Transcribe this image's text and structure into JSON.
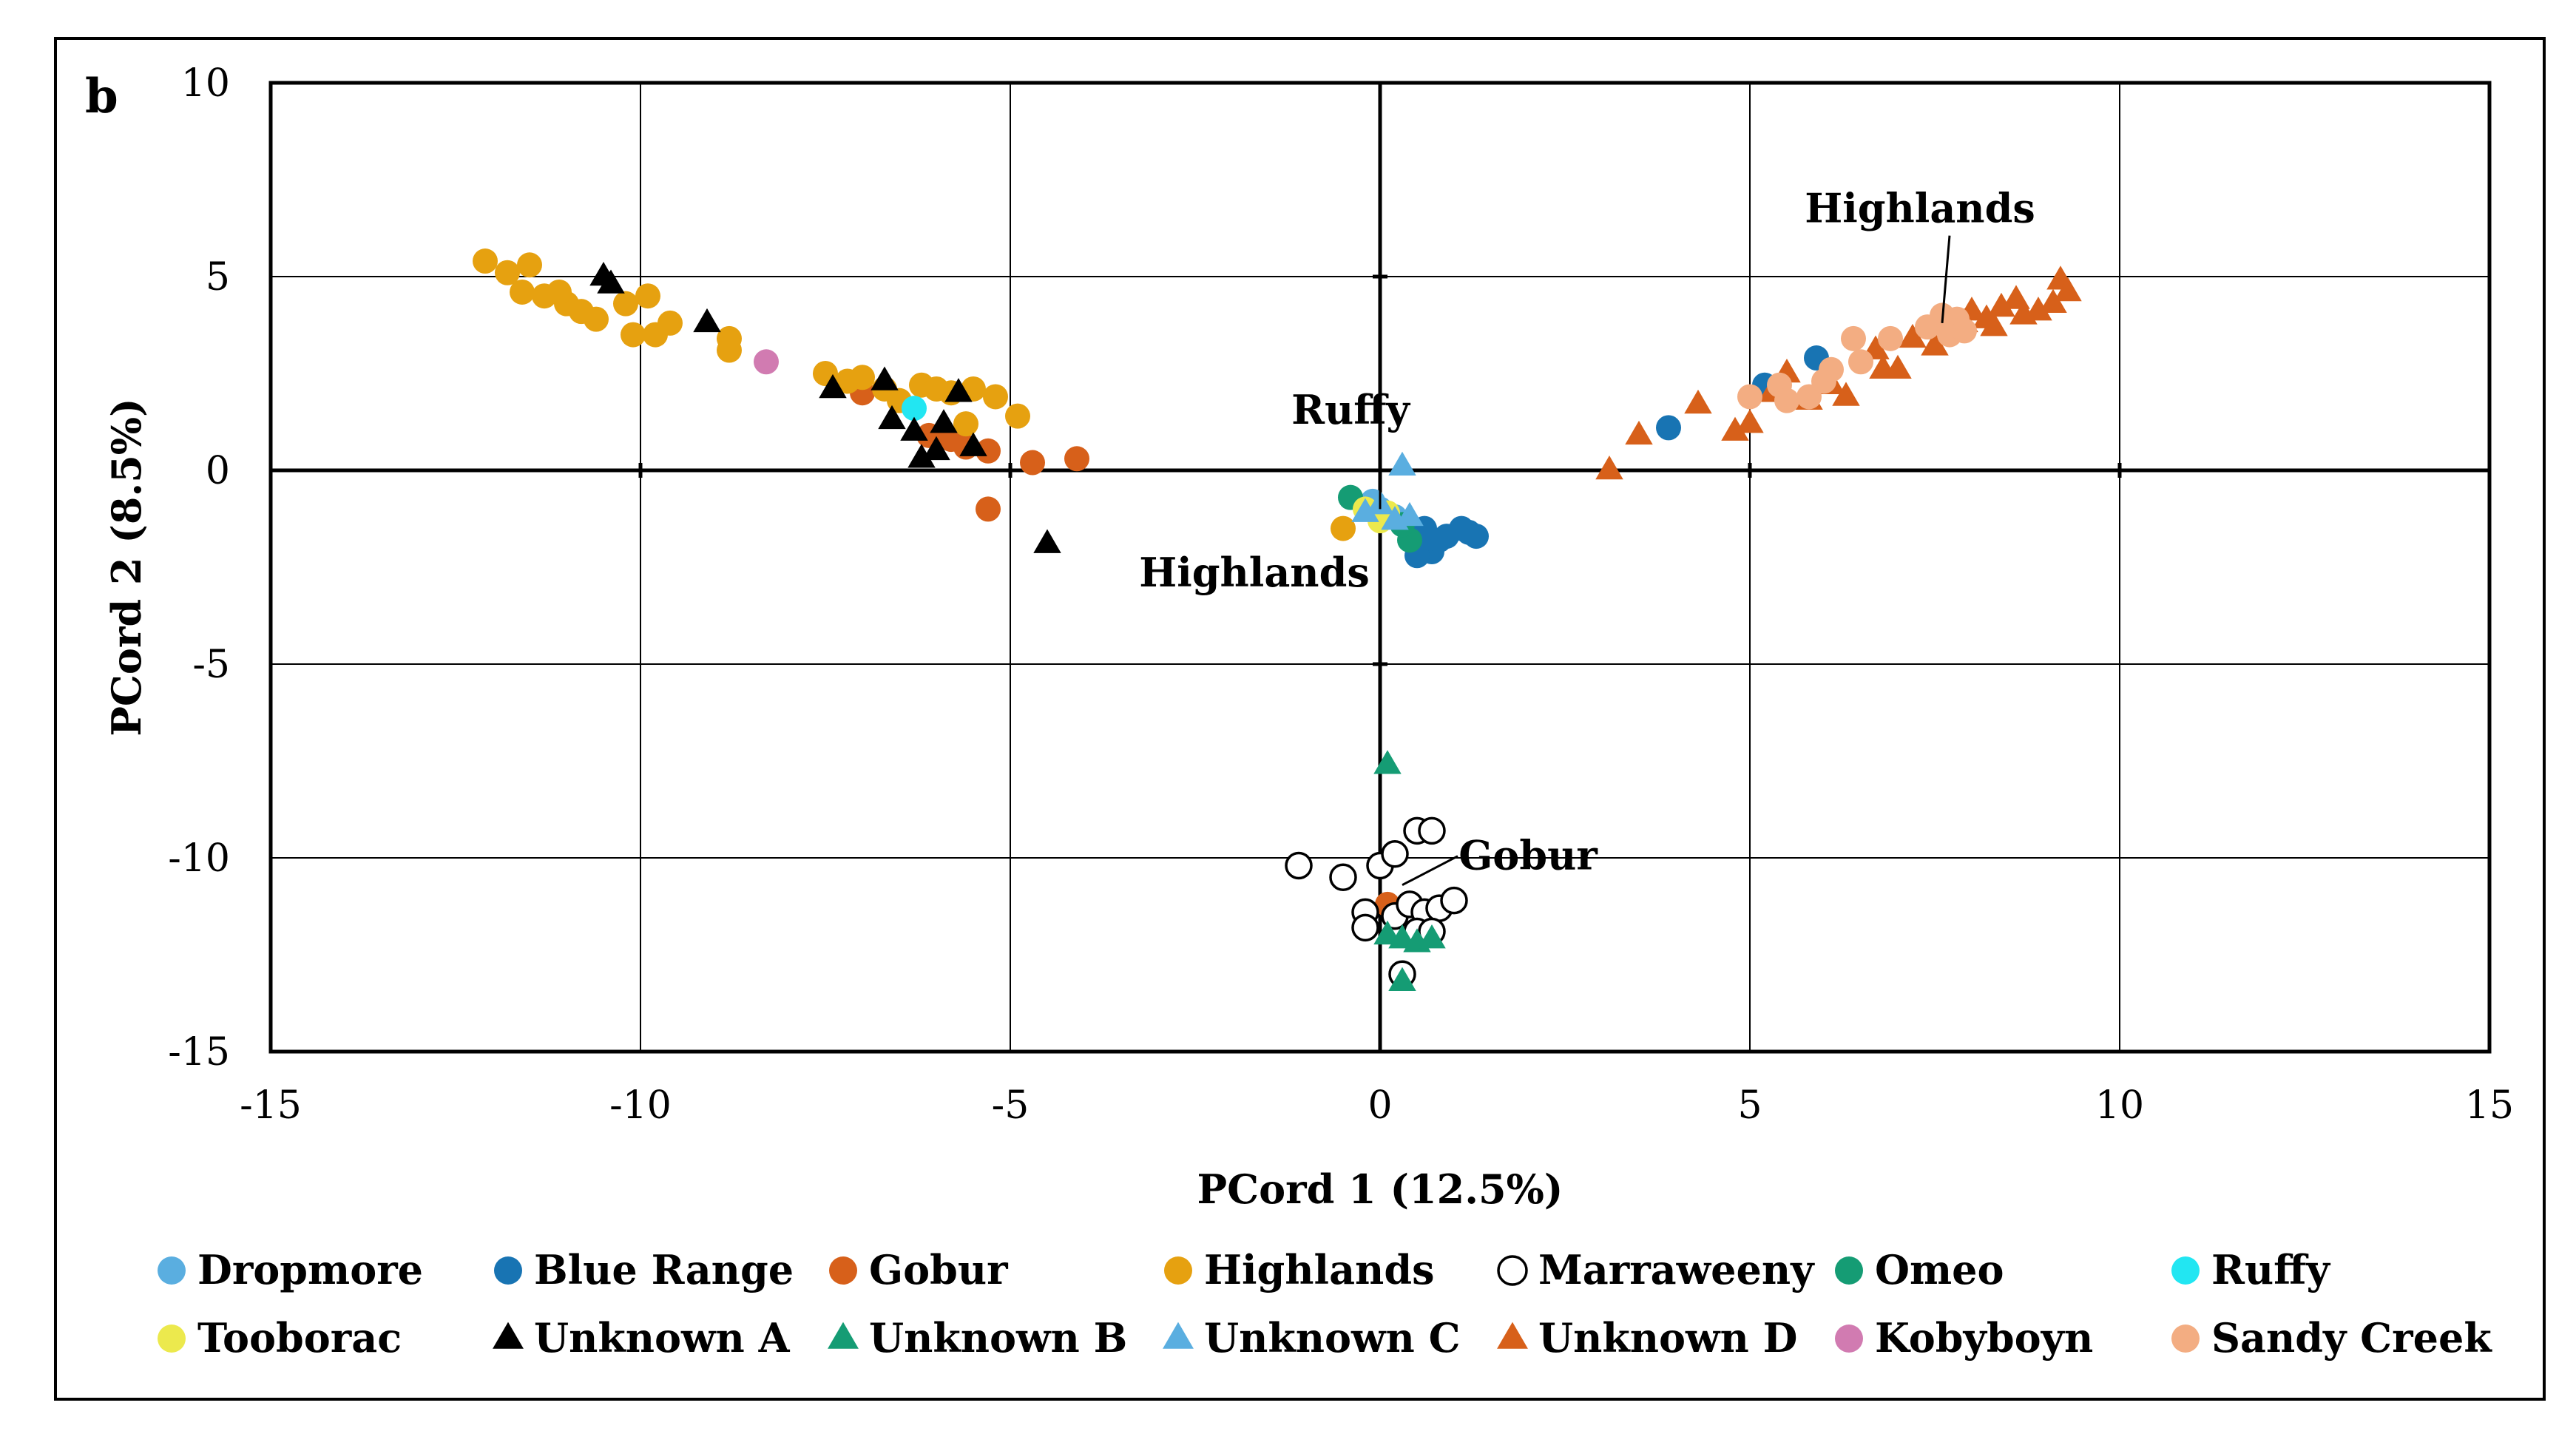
{
  "panel_label": "b",
  "chart_data": {
    "type": "scatter",
    "title": "",
    "xlabel": "PCord 1 (12.5%)",
    "ylabel": "PCord 2 (8.5%)",
    "xlim": [
      -15,
      15
    ],
    "ylim": [
      -15,
      10
    ],
    "xticks": [
      -15,
      -10,
      -5,
      0,
      5,
      10,
      15
    ],
    "yticks": [
      10,
      5,
      0,
      -5,
      -10,
      -15
    ],
    "grid": true,
    "legend_position": "bottom",
    "annotations": [
      {
        "text": "Highlands",
        "x": 7.3,
        "y": 6.4,
        "target": [
          7.6,
          3.8
        ]
      },
      {
        "text": "Ruffy",
        "x": -0.4,
        "y": 1.2,
        "target": [
          0.0,
          -1.0
        ]
      },
      {
        "text": "Highlands",
        "x": -1.7,
        "y": -3.0,
        "target": null
      },
      {
        "text": "Gobur",
        "x": 2.0,
        "y": -10.3,
        "target": [
          0.3,
          -10.7
        ]
      }
    ],
    "series": [
      {
        "name": "Dropmore",
        "marker": "circle",
        "fill": "#5aaee0",
        "stroke": "none",
        "points": [
          [
            0.0,
            -1.0
          ],
          [
            0.2,
            -1.2
          ],
          [
            -0.1,
            -0.8
          ]
        ]
      },
      {
        "name": "Blue Range",
        "marker": "circle",
        "fill": "#1874b3",
        "stroke": "none",
        "points": [
          [
            0.5,
            -1.9
          ],
          [
            0.7,
            -2.1
          ],
          [
            0.9,
            -1.7
          ],
          [
            1.1,
            -1.5
          ],
          [
            1.2,
            -1.6
          ],
          [
            1.3,
            -1.7
          ],
          [
            0.8,
            -1.8
          ],
          [
            0.5,
            -2.2
          ],
          [
            0.6,
            -1.5
          ],
          [
            3.9,
            1.1
          ],
          [
            5.9,
            2.9
          ],
          [
            5.2,
            2.2
          ]
        ]
      },
      {
        "name": "Gobur",
        "marker": "circle",
        "fill": "#d7601a",
        "stroke": "none",
        "points": [
          [
            -4.1,
            0.3
          ],
          [
            -4.7,
            0.2
          ],
          [
            -5.3,
            0.5
          ],
          [
            -5.3,
            -1.0
          ],
          [
            -5.8,
            0.8
          ],
          [
            -6.1,
            0.9
          ],
          [
            -7.0,
            2.0
          ],
          [
            -5.6,
            0.6
          ],
          [
            0.1,
            -11.2
          ]
        ]
      },
      {
        "name": "Highlands",
        "marker": "circle",
        "fill": "#e6a110",
        "stroke": "none",
        "points": [
          [
            -12.1,
            5.4
          ],
          [
            -11.8,
            5.1
          ],
          [
            -11.5,
            5.3
          ],
          [
            -11.6,
            4.6
          ],
          [
            -11.3,
            4.5
          ],
          [
            -11.0,
            4.3
          ],
          [
            -10.8,
            4.1
          ],
          [
            -11.1,
            4.6
          ],
          [
            -10.6,
            3.9
          ],
          [
            -10.2,
            4.3
          ],
          [
            -9.9,
            4.5
          ],
          [
            -10.1,
            3.5
          ],
          [
            -9.8,
            3.5
          ],
          [
            -9.6,
            3.8
          ],
          [
            -8.8,
            3.4
          ],
          [
            -8.8,
            3.1
          ],
          [
            -7.5,
            2.5
          ],
          [
            -7.2,
            2.3
          ],
          [
            -7.0,
            2.4
          ],
          [
            -6.7,
            2.1
          ],
          [
            -6.5,
            1.8
          ],
          [
            -6.2,
            2.2
          ],
          [
            -6.0,
            2.1
          ],
          [
            -5.8,
            2.0
          ],
          [
            -5.5,
            2.1
          ],
          [
            -5.2,
            1.9
          ],
          [
            -5.6,
            1.2
          ],
          [
            -4.9,
            1.4
          ],
          [
            -0.5,
            -1.5
          ]
        ]
      },
      {
        "name": "Marraweeny",
        "marker": "circle",
        "fill": "#ffffff",
        "stroke": "#000000",
        "points": [
          [
            -1.1,
            -10.2
          ],
          [
            -0.5,
            -10.5
          ],
          [
            0.0,
            -10.2
          ],
          [
            0.2,
            -9.9
          ],
          [
            0.5,
            -9.3
          ],
          [
            0.7,
            -9.3
          ],
          [
            -0.2,
            -11.4
          ],
          [
            -0.2,
            -11.8
          ],
          [
            0.2,
            -11.5
          ],
          [
            0.4,
            -11.2
          ],
          [
            0.6,
            -11.4
          ],
          [
            0.8,
            -11.3
          ],
          [
            1.0,
            -11.1
          ],
          [
            0.5,
            -11.9
          ],
          [
            0.7,
            -11.9
          ],
          [
            0.3,
            -13.0
          ]
        ]
      },
      {
        "name": "Omeo",
        "marker": "circle",
        "fill": "#159c74",
        "stroke": "none",
        "points": [
          [
            -0.4,
            -0.7
          ],
          [
            0.4,
            -1.8
          ],
          [
            0.3,
            -1.4
          ]
        ]
      },
      {
        "name": "Ruffy",
        "marker": "circle",
        "fill": "#22e6f2",
        "stroke": "none",
        "points": [
          [
            -6.3,
            1.6
          ]
        ]
      },
      {
        "name": "Tooborac",
        "marker": "circle",
        "fill": "#ece94d",
        "stroke": "none",
        "points": [
          [
            -0.2,
            -1.0
          ],
          [
            0.0,
            -1.3
          ],
          [
            0.1,
            -1.1
          ]
        ]
      },
      {
        "name": "Unknown A",
        "marker": "triangle",
        "fill": "#000000",
        "stroke": "none",
        "points": [
          [
            -10.5,
            5.0
          ],
          [
            -10.4,
            4.8
          ],
          [
            -9.1,
            3.8
          ],
          [
            -7.4,
            2.1
          ],
          [
            -6.7,
            2.3
          ],
          [
            -6.6,
            1.3
          ],
          [
            -6.3,
            1.0
          ],
          [
            -6.2,
            0.3
          ],
          [
            -6.0,
            0.5
          ],
          [
            -5.9,
            1.2
          ],
          [
            -5.7,
            2.0
          ],
          [
            -5.5,
            0.6
          ],
          [
            -4.5,
            -1.9
          ]
        ]
      },
      {
        "name": "Unknown B",
        "marker": "triangle",
        "fill": "#159c74",
        "stroke": "none",
        "points": [
          [
            0.1,
            -7.6
          ],
          [
            0.1,
            -12.0
          ],
          [
            0.3,
            -12.1
          ],
          [
            0.5,
            -12.2
          ],
          [
            0.7,
            -12.1
          ],
          [
            0.3,
            -13.2
          ]
        ]
      },
      {
        "name": "Unknown C",
        "marker": "triangle",
        "fill": "#5aaee0",
        "stroke": "none",
        "points": [
          [
            0.3,
            0.1
          ],
          [
            -0.2,
            -1.1
          ],
          [
            0.0,
            -0.9
          ],
          [
            0.2,
            -1.3
          ],
          [
            0.4,
            -1.2
          ]
        ]
      },
      {
        "name": "Unknown D",
        "marker": "triangle",
        "fill": "#d7601a",
        "stroke": "none",
        "points": [
          [
            3.1,
            0.0
          ],
          [
            3.5,
            0.9
          ],
          [
            4.3,
            1.7
          ],
          [
            4.8,
            1.0
          ],
          [
            5.0,
            1.2
          ],
          [
            5.3,
            2.0
          ],
          [
            5.5,
            2.5
          ],
          [
            5.8,
            1.8
          ],
          [
            6.1,
            2.2
          ],
          [
            6.3,
            1.9
          ],
          [
            6.7,
            3.1
          ],
          [
            6.8,
            2.6
          ],
          [
            7.0,
            2.6
          ],
          [
            7.2,
            3.4
          ],
          [
            7.5,
            3.2
          ],
          [
            7.7,
            3.6
          ],
          [
            7.9,
            3.8
          ],
          [
            8.0,
            4.1
          ],
          [
            8.2,
            3.9
          ],
          [
            8.3,
            3.7
          ],
          [
            8.4,
            4.2
          ],
          [
            8.6,
            4.4
          ],
          [
            8.7,
            4.0
          ],
          [
            8.9,
            4.1
          ],
          [
            9.1,
            4.3
          ],
          [
            9.2,
            4.9
          ],
          [
            9.3,
            4.6
          ]
        ]
      },
      {
        "name": "Kobyboyn",
        "marker": "circle",
        "fill": "#d17bb1",
        "stroke": "none",
        "points": [
          [
            -8.3,
            2.8
          ]
        ]
      },
      {
        "name": "Sandy Creek",
        "marker": "circle",
        "fill": "#f3ad82",
        "stroke": "none",
        "points": [
          [
            5.0,
            1.9
          ],
          [
            5.4,
            2.2
          ],
          [
            5.5,
            1.8
          ],
          [
            5.8,
            1.9
          ],
          [
            6.0,
            2.3
          ],
          [
            6.1,
            2.6
          ],
          [
            6.4,
            3.4
          ],
          [
            6.5,
            2.8
          ],
          [
            6.9,
            3.4
          ],
          [
            7.4,
            3.7
          ],
          [
            7.6,
            4.0
          ],
          [
            7.7,
            3.5
          ],
          [
            7.8,
            3.9
          ],
          [
            7.9,
            3.6
          ]
        ]
      }
    ]
  }
}
